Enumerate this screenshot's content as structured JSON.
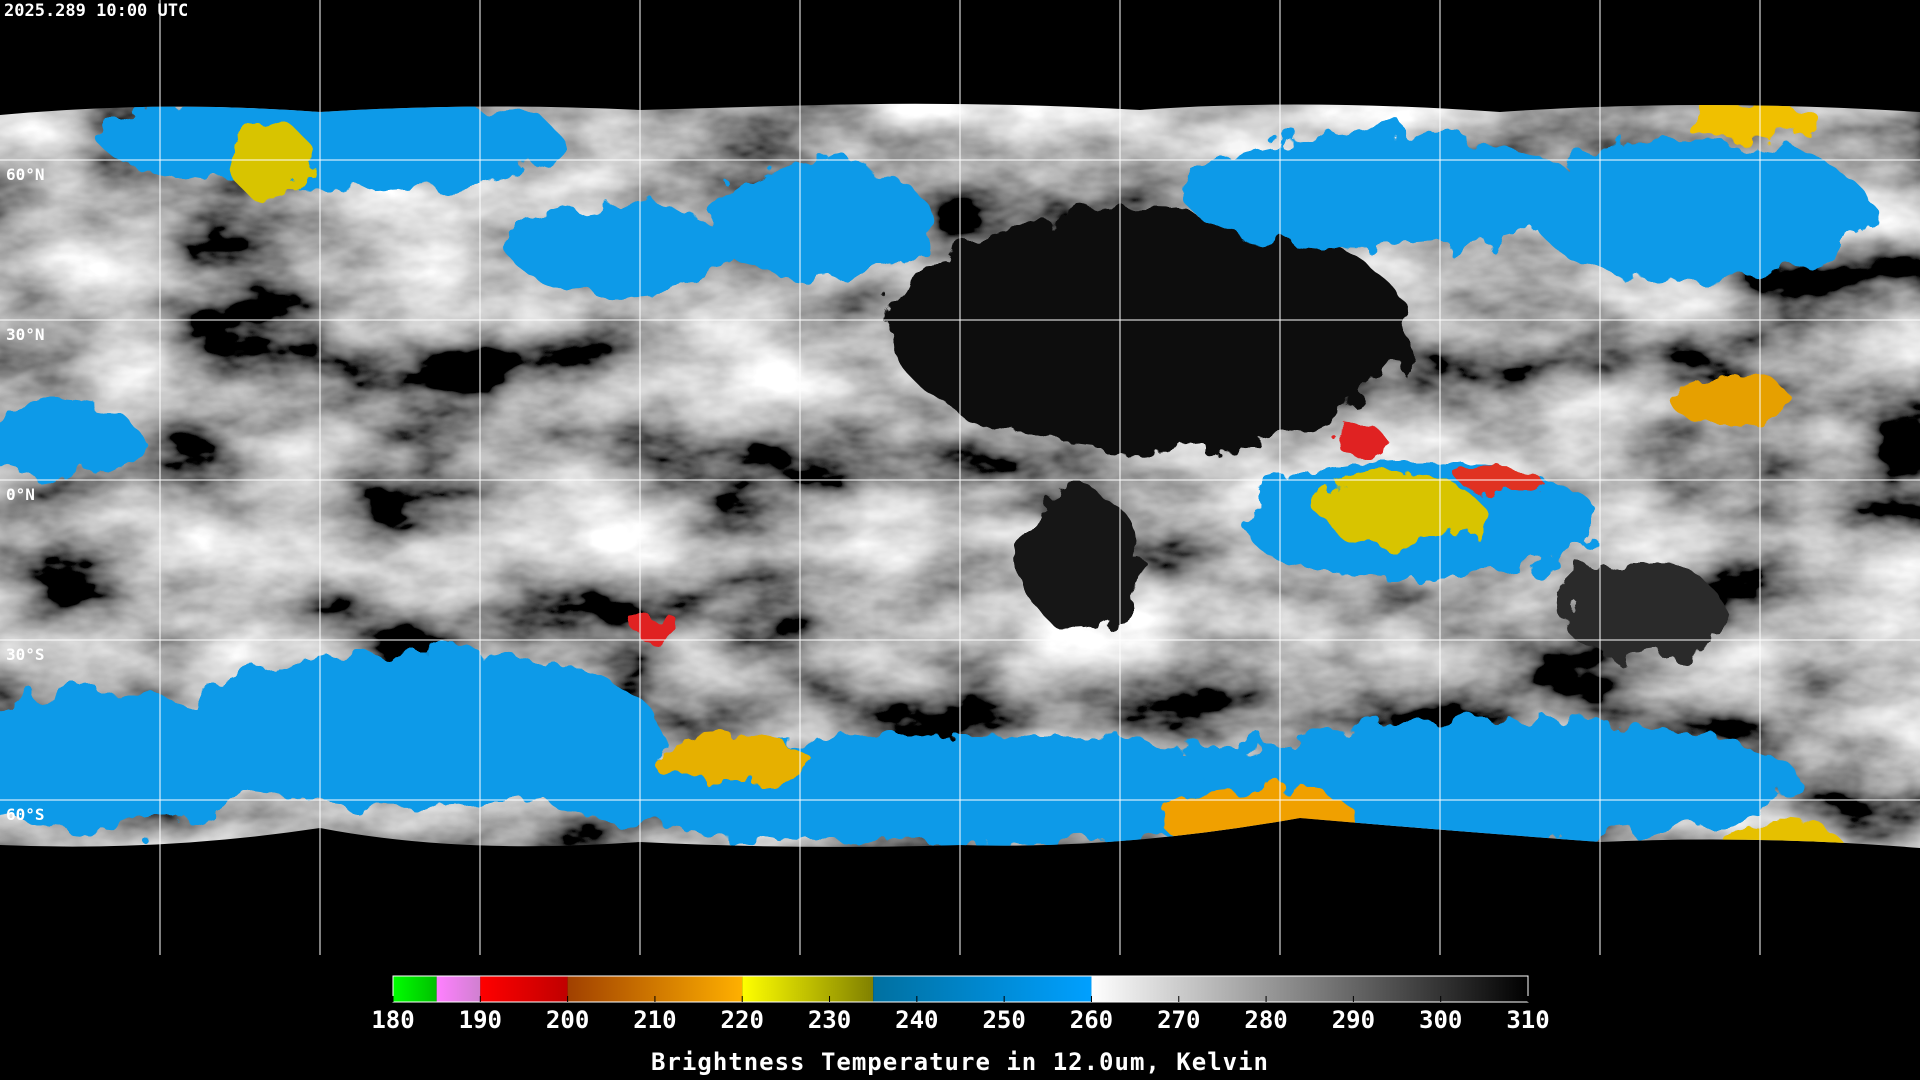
{
  "chart_data": {
    "type": "satellite-map",
    "timestamp": "2025.289 10:00 UTC",
    "lat_ticks": [
      {
        "value": 60,
        "label": "60°N"
      },
      {
        "value": 30,
        "label": "30°N"
      },
      {
        "value": 0,
        "label": "0°N"
      },
      {
        "value": -30,
        "label": "30°S"
      },
      {
        "value": -60,
        "label": "60°S"
      }
    ],
    "colorbar": {
      "title": "Brightness Temperature in 12.0um, Kelvin",
      "xlim": [
        180,
        310
      ],
      "xticks": [
        180,
        190,
        200,
        210,
        220,
        230,
        240,
        250,
        260,
        270,
        280,
        290,
        300,
        310
      ],
      "segments": [
        {
          "from": 180,
          "to": 185,
          "colors": [
            "#00ff00",
            "#00c000"
          ]
        },
        {
          "from": 185,
          "to": 190,
          "colors": [
            "#ff80ff",
            "#d080d0"
          ]
        },
        {
          "from": 190,
          "to": 200,
          "colors": [
            "#ff0000",
            "#c00000"
          ]
        },
        {
          "from": 200,
          "to": 220,
          "colors": [
            "#a04000",
            "#ffb000"
          ]
        },
        {
          "from": 220,
          "to": 235,
          "colors": [
            "#ffff00",
            "#808000"
          ]
        },
        {
          "from": 235,
          "to": 260,
          "colors": [
            "#0070a0",
            "#00a0ff"
          ]
        },
        {
          "from": 260,
          "to": 310,
          "colors": [
            "#ffffff",
            "#000000"
          ]
        }
      ]
    }
  }
}
